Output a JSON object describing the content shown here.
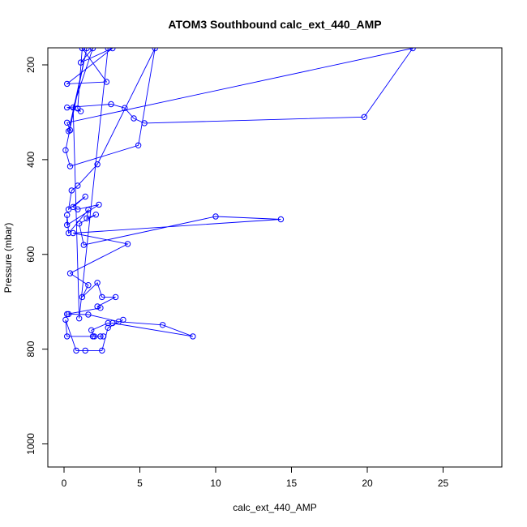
{
  "chart_data": {
    "type": "scatter",
    "title": "ATOM3 Southbound calc_ext_440_AMP",
    "xlabel": "calc_ext_440_AMP",
    "ylabel": "Pressure (mbar)",
    "xlim": [
      -1,
      28
    ],
    "ylim": [
      1050,
      165
    ],
    "y_reversed": true,
    "xticks": [
      0,
      5,
      10,
      15,
      20,
      25
    ],
    "yticks": [
      200,
      400,
      600,
      800,
      1000
    ],
    "grid": false,
    "legend": "none",
    "series_color": "#0000ff",
    "marker": "open-circle",
    "connected": true,
    "points": [
      [
        2.9,
        165
      ],
      [
        1.0,
        735
      ],
      [
        0.6,
        290
      ],
      [
        1.9,
        165
      ],
      [
        1.1,
        195
      ],
      [
        3.2,
        165
      ],
      [
        0.2,
        240
      ],
      [
        2.8,
        236
      ],
      [
        1.2,
        165
      ],
      [
        0.9,
        292
      ],
      [
        1.1,
        298
      ],
      [
        0.2,
        290
      ],
      [
        3.1,
        283
      ],
      [
        4.0,
        291
      ],
      [
        4.6,
        313
      ],
      [
        5.3,
        323
      ],
      [
        19.8,
        310
      ],
      [
        23.0,
        165
      ],
      [
        0.2,
        322
      ],
      [
        0.4,
        338
      ],
      [
        0.3,
        340
      ],
      [
        1.5,
        165
      ],
      [
        0.1,
        380
      ],
      [
        0.4,
        414
      ],
      [
        4.9,
        370
      ],
      [
        6.0,
        165
      ],
      [
        2.2,
        410
      ],
      [
        0.9,
        455
      ],
      [
        0.5,
        465
      ],
      [
        0.3,
        505
      ],
      [
        1.4,
        478
      ],
      [
        0.6,
        500
      ],
      [
        0.9,
        505
      ],
      [
        2.3,
        495
      ],
      [
        0.2,
        538
      ],
      [
        0.2,
        517
      ],
      [
        0.3,
        555
      ],
      [
        1.6,
        506
      ],
      [
        1.5,
        524
      ],
      [
        2.1,
        516
      ],
      [
        1.0,
        535
      ],
      [
        1.3,
        580
      ],
      [
        10.0,
        520
      ],
      [
        14.3,
        526
      ],
      [
        0.6,
        555
      ],
      [
        4.2,
        578
      ],
      [
        0.4,
        640
      ],
      [
        1.6,
        665
      ],
      [
        1.2,
        690
      ],
      [
        2.2,
        660
      ],
      [
        2.5,
        690
      ],
      [
        3.4,
        690
      ],
      [
        2.2,
        710
      ],
      [
        2.4,
        713
      ],
      [
        0.2,
        726
      ],
      [
        0.3,
        726
      ],
      [
        1.6,
        727
      ],
      [
        3.6,
        742
      ],
      [
        6.5,
        749
      ],
      [
        8.5,
        773
      ],
      [
        3.2,
        745
      ],
      [
        2.9,
        745
      ],
      [
        1.8,
        760
      ],
      [
        2.0,
        773
      ],
      [
        2.4,
        773
      ],
      [
        2.6,
        773
      ],
      [
        1.9,
        773
      ],
      [
        0.2,
        773
      ],
      [
        0.1,
        738
      ],
      [
        0.8,
        803
      ],
      [
        1.4,
        803
      ],
      [
        2.5,
        803
      ],
      [
        2.9,
        755
      ],
      [
        3.9,
        738
      ]
    ]
  }
}
